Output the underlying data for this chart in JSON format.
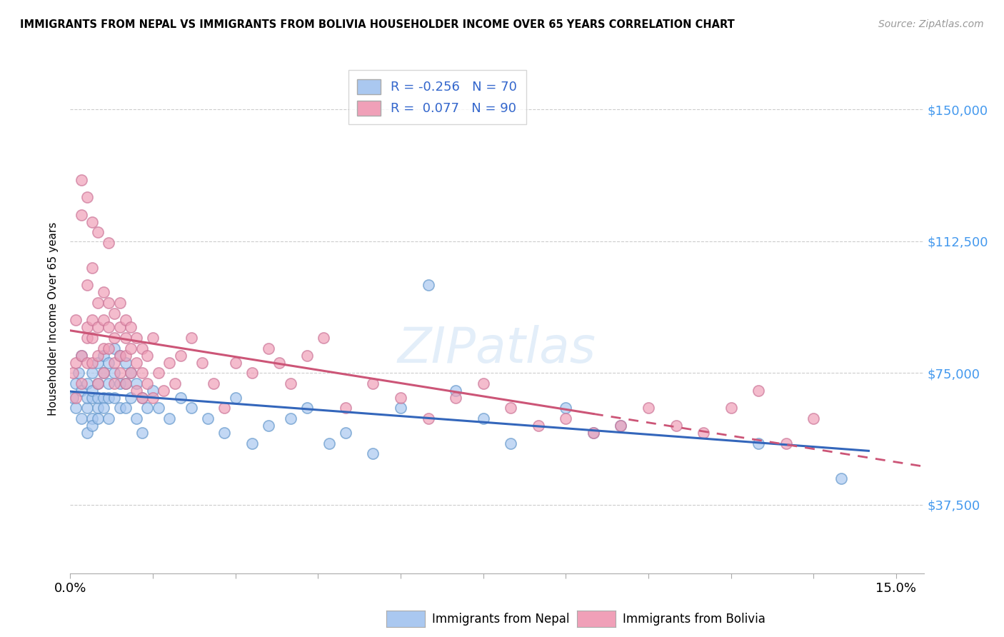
{
  "title": "IMMIGRANTS FROM NEPAL VS IMMIGRANTS FROM BOLIVIA HOUSEHOLDER INCOME OVER 65 YEARS CORRELATION CHART",
  "source": "Source: ZipAtlas.com",
  "ylabel": "Householder Income Over 65 years",
  "ytick_labels": [
    "$37,500",
    "$75,000",
    "$112,500",
    "$150,000"
  ],
  "ytick_values": [
    37500,
    75000,
    112500,
    150000
  ],
  "ylim": [
    18000,
    163000
  ],
  "xlim": [
    0.0,
    0.155
  ],
  "nepal_color": "#aac8f0",
  "bolivia_color": "#f0a0b8",
  "nepal_edge_color": "#6699cc",
  "bolivia_edge_color": "#cc7799",
  "nepal_line_color": "#3366bb",
  "bolivia_line_color": "#cc5577",
  "nepal_R": -0.256,
  "nepal_N": 70,
  "bolivia_R": 0.077,
  "bolivia_N": 90,
  "nepal_x": [
    0.0005,
    0.001,
    0.001,
    0.0015,
    0.002,
    0.002,
    0.002,
    0.003,
    0.003,
    0.003,
    0.003,
    0.004,
    0.004,
    0.004,
    0.004,
    0.004,
    0.005,
    0.005,
    0.005,
    0.005,
    0.005,
    0.006,
    0.006,
    0.006,
    0.006,
    0.007,
    0.007,
    0.007,
    0.007,
    0.008,
    0.008,
    0.008,
    0.009,
    0.009,
    0.009,
    0.01,
    0.01,
    0.01,
    0.011,
    0.011,
    0.012,
    0.012,
    0.013,
    0.013,
    0.014,
    0.015,
    0.016,
    0.018,
    0.02,
    0.022,
    0.025,
    0.028,
    0.03,
    0.033,
    0.036,
    0.04,
    0.043,
    0.047,
    0.05,
    0.055,
    0.06,
    0.065,
    0.07,
    0.075,
    0.08,
    0.09,
    0.095,
    0.1,
    0.125,
    0.14
  ],
  "nepal_y": [
    68000,
    72000,
    65000,
    75000,
    70000,
    62000,
    80000,
    72000,
    65000,
    68000,
    58000,
    75000,
    68000,
    62000,
    70000,
    60000,
    78000,
    72000,
    65000,
    68000,
    62000,
    80000,
    75000,
    68000,
    65000,
    78000,
    72000,
    68000,
    62000,
    82000,
    75000,
    68000,
    80000,
    72000,
    65000,
    78000,
    72000,
    65000,
    75000,
    68000,
    72000,
    62000,
    68000,
    58000,
    65000,
    70000,
    65000,
    62000,
    68000,
    65000,
    62000,
    58000,
    68000,
    55000,
    60000,
    62000,
    65000,
    55000,
    58000,
    52000,
    65000,
    100000,
    70000,
    62000,
    55000,
    65000,
    58000,
    60000,
    55000,
    45000
  ],
  "bolivia_x": [
    0.0005,
    0.001,
    0.001,
    0.001,
    0.002,
    0.002,
    0.002,
    0.002,
    0.003,
    0.003,
    0.003,
    0.003,
    0.003,
    0.004,
    0.004,
    0.004,
    0.004,
    0.004,
    0.005,
    0.005,
    0.005,
    0.005,
    0.005,
    0.006,
    0.006,
    0.006,
    0.006,
    0.007,
    0.007,
    0.007,
    0.007,
    0.008,
    0.008,
    0.008,
    0.008,
    0.009,
    0.009,
    0.009,
    0.009,
    0.01,
    0.01,
    0.01,
    0.01,
    0.011,
    0.011,
    0.011,
    0.012,
    0.012,
    0.012,
    0.013,
    0.013,
    0.013,
    0.014,
    0.014,
    0.015,
    0.015,
    0.016,
    0.017,
    0.018,
    0.019,
    0.02,
    0.022,
    0.024,
    0.026,
    0.028,
    0.03,
    0.033,
    0.036,
    0.038,
    0.04,
    0.043,
    0.046,
    0.05,
    0.055,
    0.06,
    0.065,
    0.07,
    0.075,
    0.08,
    0.085,
    0.09,
    0.095,
    0.1,
    0.105,
    0.11,
    0.115,
    0.12,
    0.125,
    0.13,
    0.135
  ],
  "bolivia_y": [
    75000,
    78000,
    68000,
    90000,
    80000,
    72000,
    130000,
    120000,
    88000,
    85000,
    125000,
    100000,
    78000,
    90000,
    85000,
    78000,
    118000,
    105000,
    95000,
    88000,
    80000,
    72000,
    115000,
    98000,
    90000,
    82000,
    75000,
    95000,
    88000,
    82000,
    112000,
    92000,
    85000,
    78000,
    72000,
    95000,
    88000,
    80000,
    75000,
    90000,
    85000,
    80000,
    72000,
    88000,
    82000,
    75000,
    85000,
    78000,
    70000,
    82000,
    75000,
    68000,
    80000,
    72000,
    85000,
    68000,
    75000,
    70000,
    78000,
    72000,
    80000,
    85000,
    78000,
    72000,
    65000,
    78000,
    75000,
    82000,
    78000,
    72000,
    80000,
    85000,
    65000,
    72000,
    68000,
    62000,
    68000,
    72000,
    65000,
    60000,
    62000,
    58000,
    60000,
    65000,
    60000,
    58000,
    65000,
    70000,
    55000,
    62000
  ]
}
